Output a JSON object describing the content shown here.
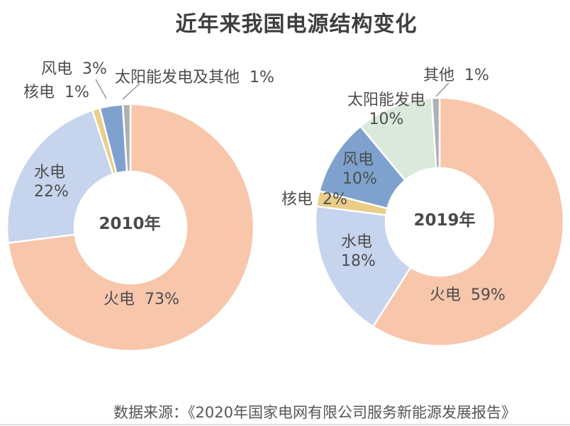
{
  "title": "近年来我国电源结构变化",
  "source_caption": "数据来源：《2020年国家电网有限公司服务新能源发展报告》",
  "palette": {
    "thermal": "#F7C6AB",
    "hydro": "#C6D4ED",
    "nuclear": "#EACE87",
    "wind": "#7EA2CD",
    "solar": "#DAE9DC",
    "other": "#B0B0B2",
    "label_text": "#4D4D4D",
    "title_text": "#3E3E3E",
    "leader_line": "#8A8A8A"
  },
  "chart_data": [
    {
      "type": "pie",
      "variant": "donut",
      "title": "2010年",
      "unit": "%",
      "start_angle": "12-o-clock",
      "direction": "clockwise",
      "categories": [
        "火电",
        "水电",
        "核电",
        "风电",
        "太阳能发电及其他"
      ],
      "values": [
        73,
        22,
        1,
        3,
        1
      ],
      "color_keys": [
        "thermal",
        "hydro",
        "nuclear",
        "wind",
        "other"
      ],
      "labels": {
        "center": "2010年",
        "thermal": "火电  73%",
        "hydro": "水电\n22%",
        "nuclear": "核电  1%",
        "wind": "风电  3%",
        "solar_other": "太阳能发电及其他  1%"
      }
    },
    {
      "type": "pie",
      "variant": "donut",
      "title": "2019年",
      "unit": "%",
      "start_angle": "12-o-clock",
      "direction": "clockwise",
      "categories": [
        "火电",
        "水电",
        "核电",
        "风电",
        "太阳能发电",
        "其他"
      ],
      "values": [
        59,
        18,
        2,
        10,
        10,
        1
      ],
      "color_keys": [
        "thermal",
        "hydro",
        "nuclear",
        "wind",
        "solar",
        "other"
      ],
      "labels": {
        "center": "2019年",
        "thermal": "火电  59%",
        "hydro": "水电\n18%",
        "nuclear": "核电  2%",
        "wind": "风电\n10%",
        "solar": "太阳能发电\n10%",
        "other": "其他  1%"
      }
    }
  ]
}
